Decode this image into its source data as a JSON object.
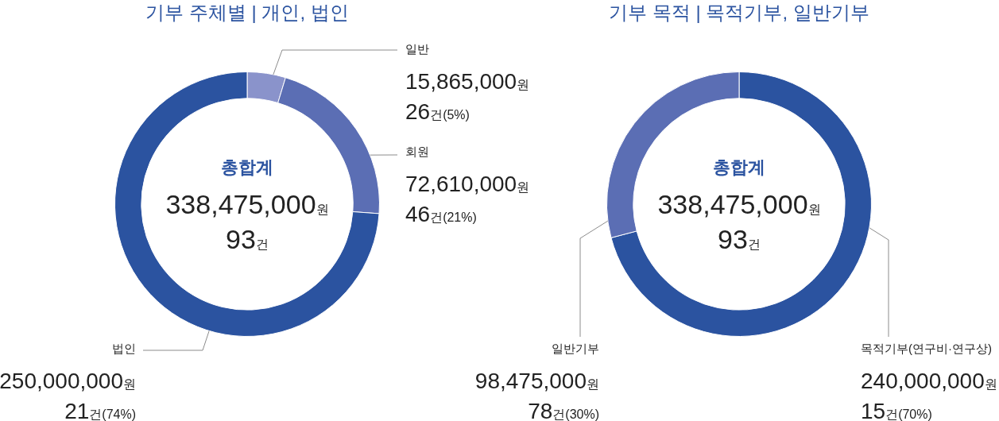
{
  "chart_data": [
    {
      "type": "donut",
      "title": "기부 주체별 | 개인, 법인",
      "categories": [
        "일반",
        "회원",
        "법인"
      ],
      "values": [
        15865000,
        72610000,
        250000000
      ],
      "colors": [
        "#8a93cb",
        "#5b6eb4",
        "#2b53a0"
      ],
      "value_labels": [
        "15,865,000원",
        "72,610,000원",
        "250,000,000원"
      ],
      "annotations": [
        "총합계",
        "338,475,000원",
        "93건",
        "26건(5%)",
        "46건(21%)",
        "21건(74%)"
      ]
    },
    {
      "type": "donut",
      "title": "기부 목적 | 목적기부, 일반기부",
      "categories": [
        "목적기부(연구비·연구상)",
        "일반기부"
      ],
      "values": [
        240000000,
        98475000
      ],
      "colors": [
        "#2b53a0",
        "#5b6eb4"
      ],
      "value_labels": [
        "240,000,000원",
        "98,475,000원"
      ],
      "annotations": [
        "총합계",
        "338,475,000원",
        "93건",
        "15건(70%)",
        "78건(30%)"
      ]
    }
  ]
}
